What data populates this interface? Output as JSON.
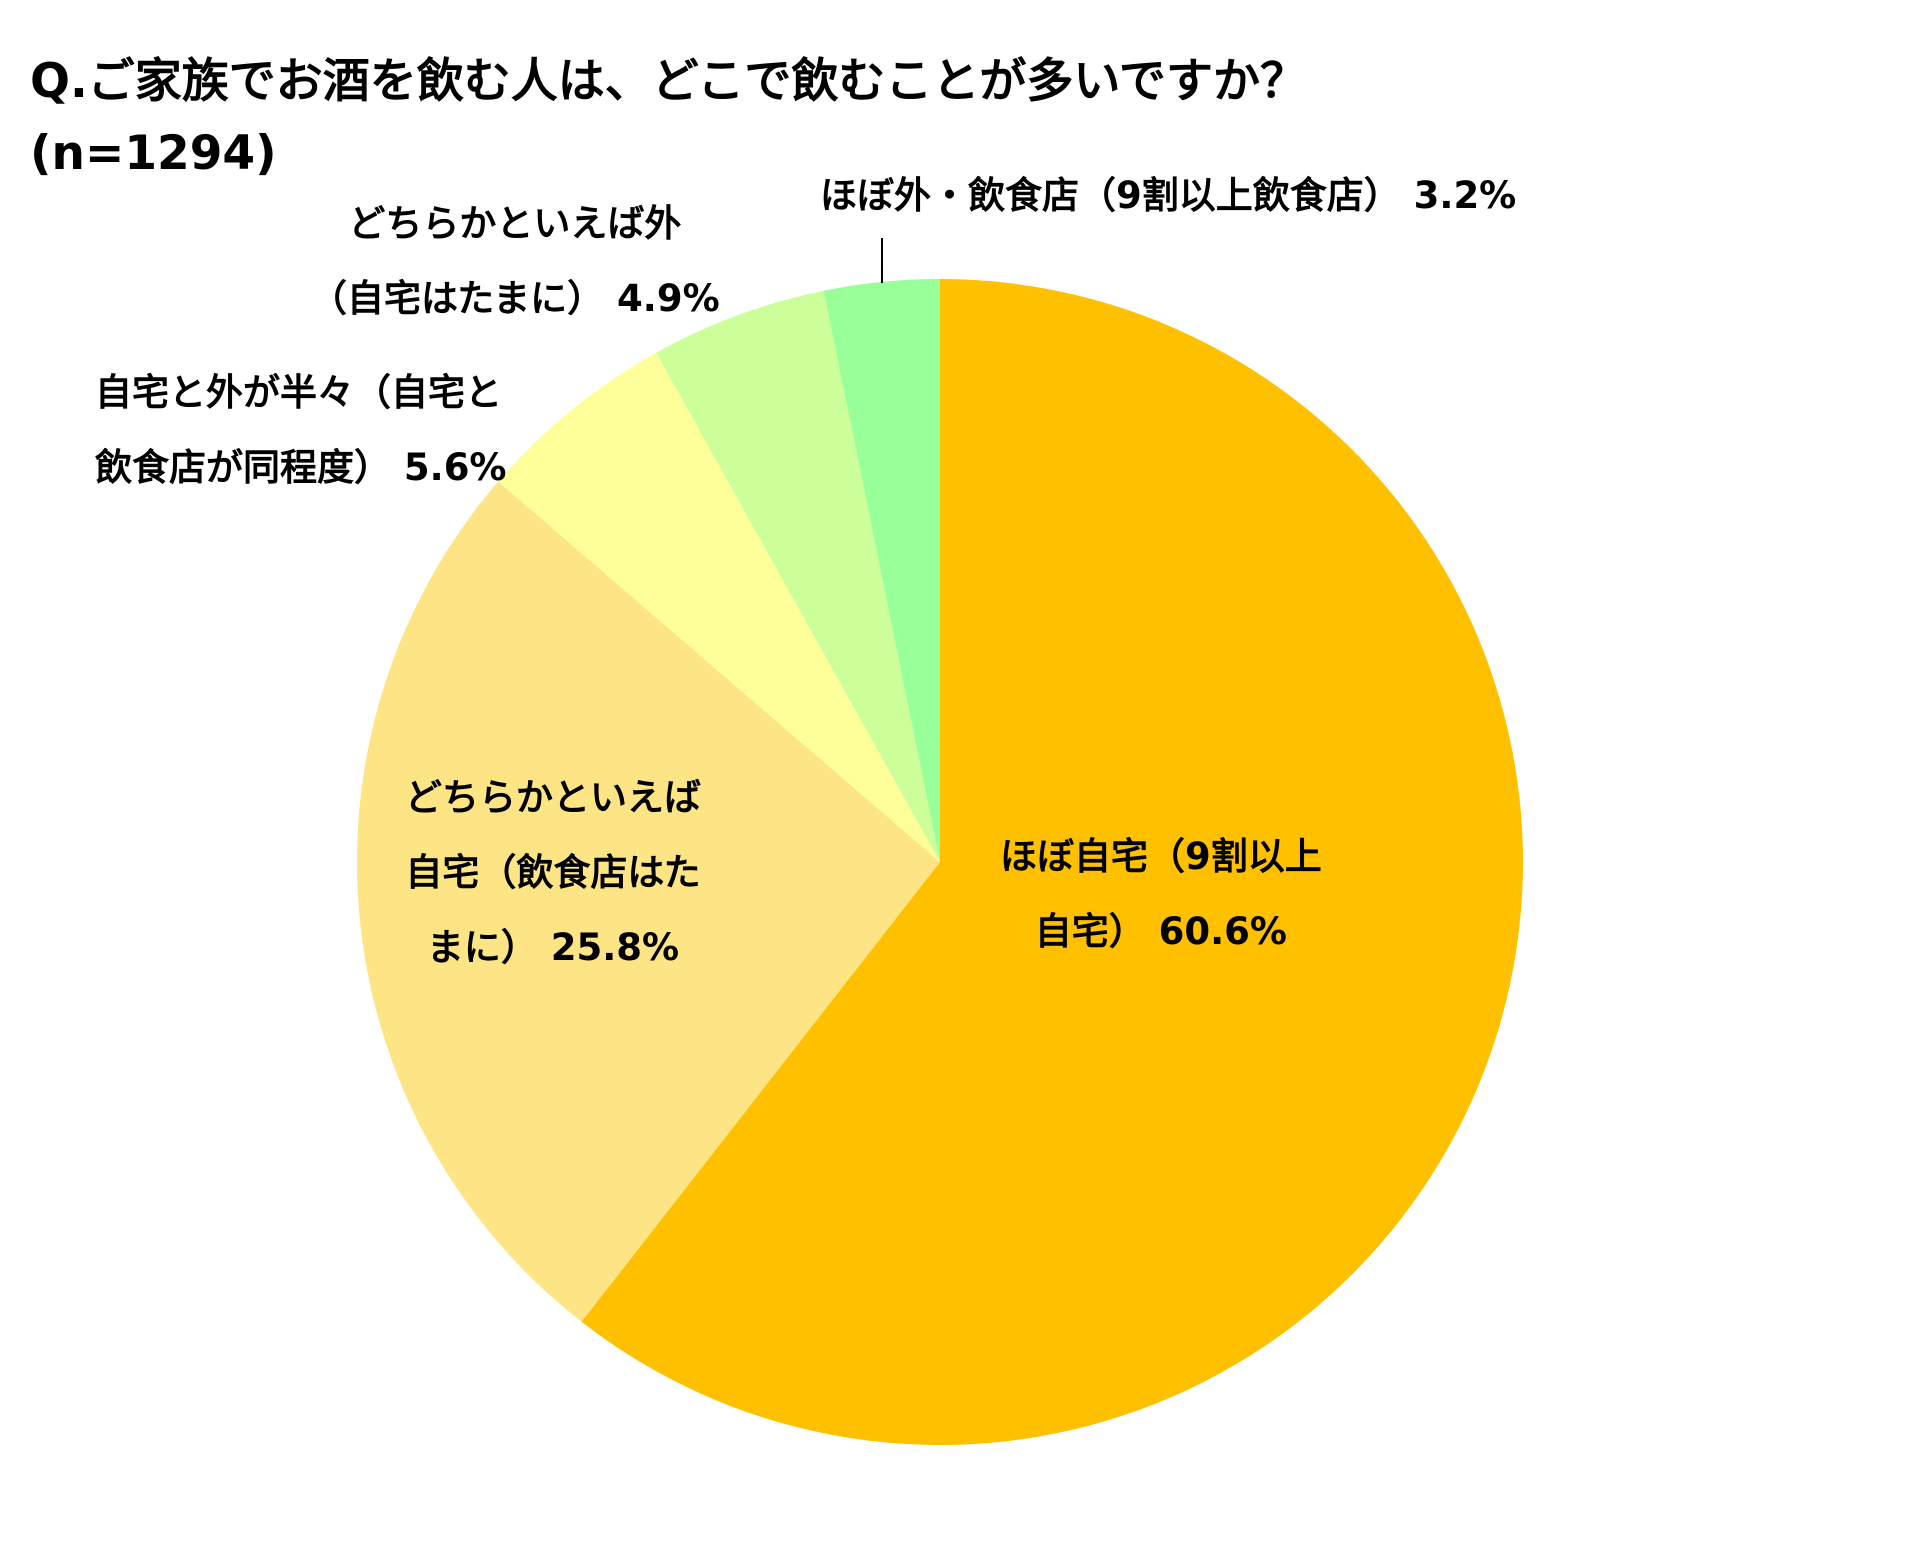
{
  "chart_data": {
    "type": "pie",
    "title": "Q.ご家族でお酒を飲む人は、どこで飲むことが多いですか？",
    "subtitle": "(n=1294)",
    "start_angle_deg": 0,
    "direction": "clockwise",
    "slices": [
      {
        "value": 60.6,
        "value_label": "60.6%",
        "label_lines": [
          "ほぼ自宅（9割以上",
          "自宅）"
        ],
        "color": "#FFC000"
      },
      {
        "value": 25.8,
        "value_label": "25.8%",
        "label_lines": [
          "どちらかといえば",
          "自宅（飲食店はた",
          "まに）"
        ],
        "color": "#FDE485"
      },
      {
        "value": 5.6,
        "value_label": "5.6%",
        "label_lines": [
          "自宅と外が半々（自宅と",
          "飲食店が同程度）"
        ],
        "color": "#FFFF99"
      },
      {
        "value": 4.9,
        "value_label": "4.9%",
        "label_lines": [
          "どちらかといえば外",
          "（自宅はたまに）"
        ],
        "color": "#CCFF99"
      },
      {
        "value": 3.2,
        "value_label": "3.2%",
        "label_lines": [
          "ほぼ外・飲食店（9割以上飲食店）"
        ],
        "color": "#99FF99"
      }
    ]
  }
}
